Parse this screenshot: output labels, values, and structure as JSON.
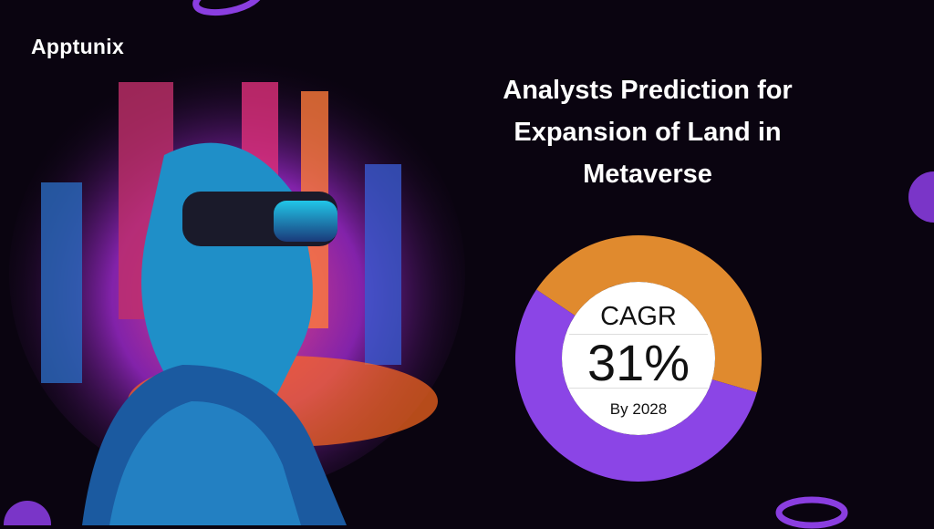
{
  "brand": {
    "logo_text": "Apptunix"
  },
  "title": {
    "lines": [
      "Analysts Prediction for",
      "Expansion of Land in",
      "Metaverse"
    ]
  },
  "chart_data": {
    "type": "pie",
    "donut": true,
    "slices": [
      {
        "value": 45,
        "color": "#e08a2e"
      },
      {
        "value": 55,
        "color": "#8b45e6"
      }
    ],
    "center_label": {
      "top": "CAGR",
      "value": "31%",
      "bottom": "By 2028"
    }
  },
  "colors": {
    "background": "#0a0410",
    "accent_orange": "#e08a2e",
    "accent_purple": "#8b45e6"
  }
}
